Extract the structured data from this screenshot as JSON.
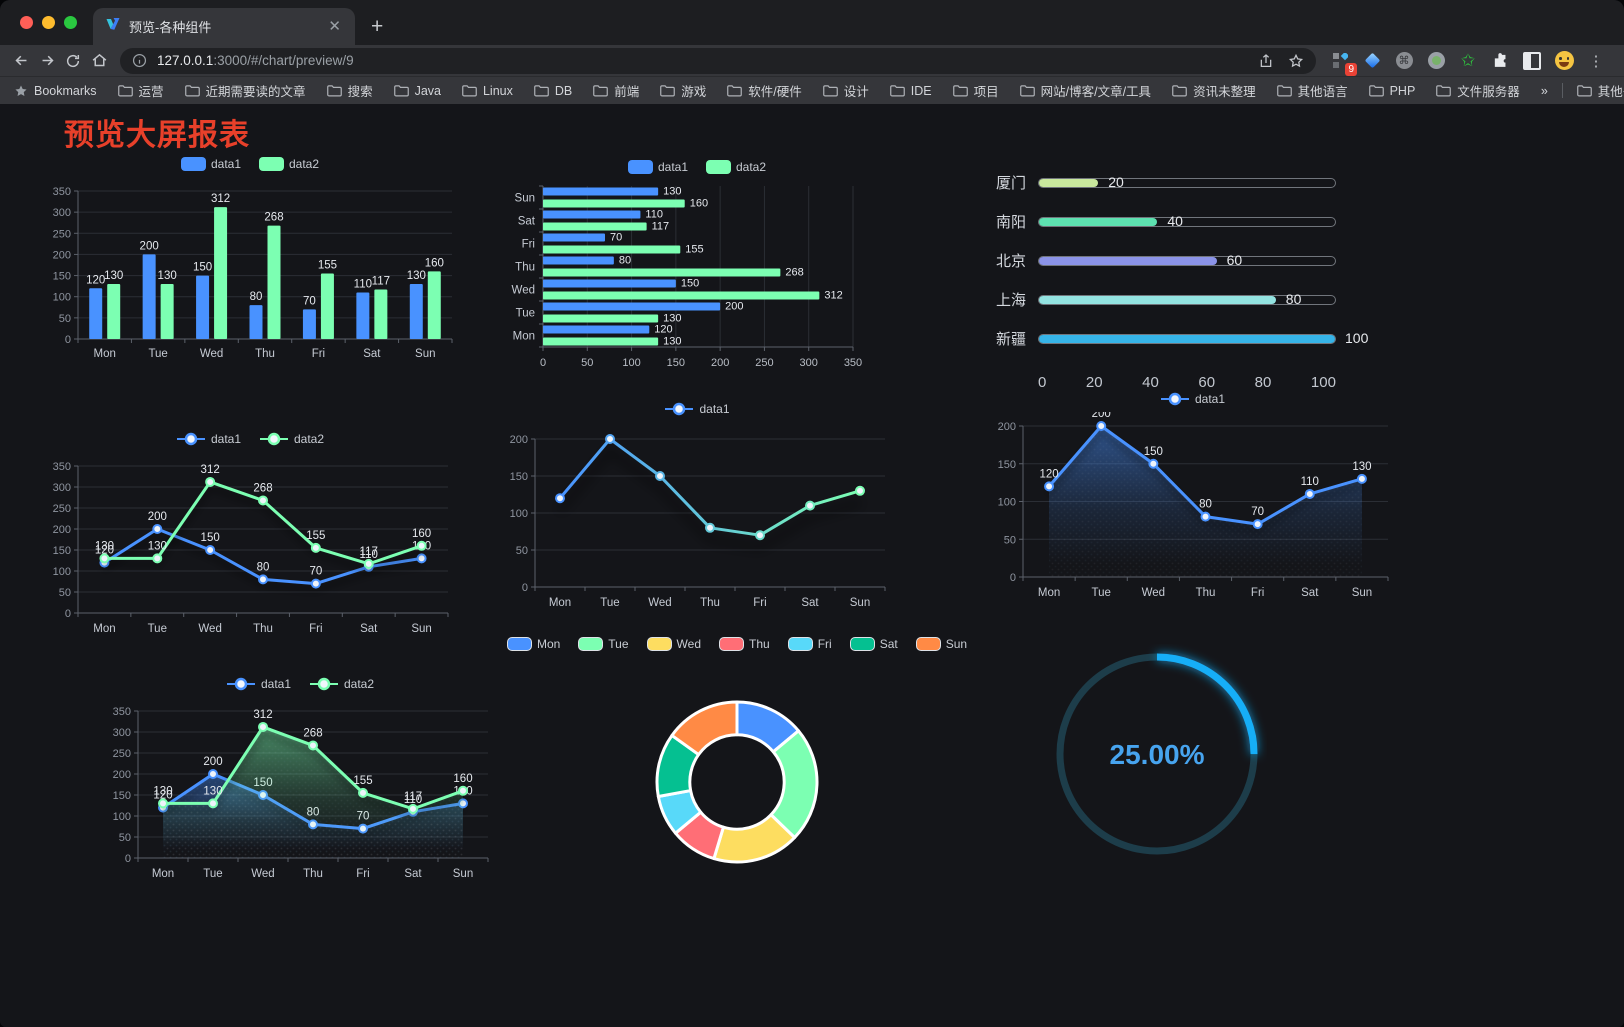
{
  "browser": {
    "window_controls": [
      "close",
      "minimize",
      "zoom"
    ],
    "tab_title": "预览-各种组件",
    "url": {
      "host": "127.0.0.1",
      "rest": ":3000/#/chart/preview/9"
    },
    "extension_badge": "9",
    "bookmarks_bar": {
      "root_label": "Bookmarks",
      "folders": [
        "运营",
        "近期需要读的文章",
        "搜索",
        "Java",
        "Linux",
        "DB",
        "前端",
        "游戏",
        "软件/硬件",
        "设计",
        "IDE",
        "项目",
        "网站/博客/文章/工具",
        "资讯未整理",
        "其他语言",
        "PHP",
        "文件服务器"
      ],
      "overflow": "»",
      "other_label": "其他书签"
    }
  },
  "page": {
    "title": "预览大屏报表"
  },
  "colors": {
    "accent_blue": "#4992ff",
    "accent_green": "#7cffb2",
    "title_red": "#e8402a"
  },
  "chart_data": [
    {
      "id": "grouped-bar",
      "type": "bar",
      "categories": [
        "Mon",
        "Tue",
        "Wed",
        "Thu",
        "Fri",
        "Sat",
        "Sun"
      ],
      "series": [
        {
          "name": "data1",
          "color": "#4992ff",
          "values": [
            120,
            200,
            150,
            80,
            70,
            110,
            130
          ]
        },
        {
          "name": "data2",
          "color": "#7cffb2",
          "values": [
            130,
            130,
            312,
            268,
            155,
            117,
            160
          ]
        }
      ],
      "ylim": [
        0,
        350
      ],
      "yticks": [
        0,
        50,
        100,
        150,
        200,
        250,
        300,
        350
      ],
      "legend_position": "top",
      "show_labels": true
    },
    {
      "id": "horizontal-bar",
      "type": "bar-horizontal",
      "categories": [
        "Mon",
        "Tue",
        "Wed",
        "Thu",
        "Fri",
        "Sat",
        "Sun"
      ],
      "series": [
        {
          "name": "data1",
          "color": "#4992ff",
          "values": [
            120,
            200,
            150,
            80,
            70,
            110,
            130
          ]
        },
        {
          "name": "data2",
          "color": "#7cffb2",
          "values": [
            130,
            130,
            312,
            268,
            155,
            117,
            160
          ]
        }
      ],
      "xlim": [
        0,
        350
      ],
      "xticks": [
        0,
        50,
        100,
        150,
        200,
        250,
        300,
        350
      ],
      "legend_position": "top",
      "show_labels": true
    },
    {
      "id": "capsule-progress",
      "type": "progress-bars",
      "items": [
        {
          "label": "厦门",
          "value": 20,
          "color": "#c9e89d"
        },
        {
          "label": "南阳",
          "value": 40,
          "color": "#5de1b0"
        },
        {
          "label": "北京",
          "value": 60,
          "color": "#8b93e8"
        },
        {
          "label": "上海",
          "value": 80,
          "color": "#93e3e1"
        },
        {
          "label": "新疆",
          "value": 100,
          "color": "#36b4e8"
        }
      ],
      "max": 100,
      "xticks": [
        0,
        20,
        40,
        60,
        80,
        100
      ]
    },
    {
      "id": "double-line",
      "type": "line",
      "categories": [
        "Mon",
        "Tue",
        "Wed",
        "Thu",
        "Fri",
        "Sat",
        "Sun"
      ],
      "series": [
        {
          "name": "data1",
          "color": "#4992ff",
          "values": [
            120,
            200,
            150,
            80,
            70,
            110,
            130
          ]
        },
        {
          "name": "data2",
          "color": "#7cffb2",
          "values": [
            130,
            130,
            312,
            268,
            155,
            117,
            160
          ]
        }
      ],
      "ylim": [
        0,
        350
      ],
      "yticks": [
        0,
        50,
        100,
        150,
        200,
        250,
        300,
        350
      ],
      "legend_position": "top",
      "show_labels": true
    },
    {
      "id": "gradient-line",
      "type": "line",
      "categories": [
        "Mon",
        "Tue",
        "Wed",
        "Thu",
        "Fri",
        "Sat",
        "Sun"
      ],
      "series": [
        {
          "name": "data1",
          "color": "#4992ff",
          "color_end": "#7cffb2",
          "values": [
            120,
            200,
            150,
            80,
            70,
            110,
            130
          ]
        }
      ],
      "ylim": [
        0,
        200
      ],
      "yticks": [
        0,
        50,
        100,
        150,
        200
      ],
      "legend_position": "top",
      "show_labels": false
    },
    {
      "id": "single-area",
      "type": "area",
      "categories": [
        "Mon",
        "Tue",
        "Wed",
        "Thu",
        "Fri",
        "Sat",
        "Sun"
      ],
      "series": [
        {
          "name": "data1",
          "color": "#4992ff",
          "values": [
            120,
            200,
            150,
            80,
            70,
            110,
            130
          ]
        }
      ],
      "ylim": [
        0,
        200
      ],
      "yticks": [
        0,
        50,
        100,
        150,
        200
      ],
      "legend_position": "top",
      "show_labels": true
    },
    {
      "id": "double-area",
      "type": "area",
      "categories": [
        "Mon",
        "Tue",
        "Wed",
        "Thu",
        "Fri",
        "Sat",
        "Sun"
      ],
      "series": [
        {
          "name": "data1",
          "color": "#4992ff",
          "values": [
            120,
            200,
            150,
            80,
            70,
            110,
            130
          ]
        },
        {
          "name": "data2",
          "color": "#7cffb2",
          "values": [
            130,
            130,
            312,
            268,
            155,
            117,
            160
          ]
        }
      ],
      "ylim": [
        0,
        350
      ],
      "yticks": [
        0,
        50,
        100,
        150,
        200,
        250,
        300,
        350
      ],
      "legend_position": "top",
      "show_labels": true
    },
    {
      "id": "donut",
      "type": "pie",
      "items": [
        {
          "label": "Mon",
          "value": 120,
          "color": "#4992ff"
        },
        {
          "label": "Tue",
          "value": 200,
          "color": "#7cffb2"
        },
        {
          "label": "Wed",
          "value": 150,
          "color": "#fddd60"
        },
        {
          "label": "Thu",
          "value": 80,
          "color": "#ff6e76"
        },
        {
          "label": "Fri",
          "value": 70,
          "color": "#58d9f9"
        },
        {
          "label": "Sat",
          "value": 110,
          "color": "#05c091"
        },
        {
          "label": "Sun",
          "value": 130,
          "color": "#ff8a45"
        }
      ],
      "inner_radius_ratio": 0.59,
      "legend_position": "top"
    },
    {
      "id": "progress-gauge",
      "type": "gauge",
      "value": 25,
      "max": 100,
      "display": "25.00%",
      "arc_color": "#19aef7",
      "track_color": "#1d3d4a",
      "text_color": "#47a4ef"
    }
  ]
}
